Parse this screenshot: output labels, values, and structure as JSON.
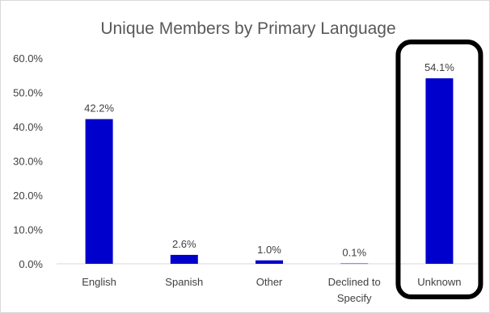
{
  "chart_data": {
    "type": "bar",
    "title": "Unique Members by Primary Language",
    "categories": [
      "English",
      "Spanish",
      "Other",
      "Declined to Specify",
      "Unknown"
    ],
    "category_lines": [
      [
        "English"
      ],
      [
        "Spanish"
      ],
      [
        "Other"
      ],
      [
        "Declined to",
        "Specify"
      ],
      [
        "Unknown"
      ]
    ],
    "values": [
      42.2,
      2.6,
      1.0,
      0.1,
      54.1
    ],
    "value_labels": [
      "42.2%",
      "2.6%",
      "1.0%",
      "0.1%",
      "54.1%"
    ],
    "yticks": [
      "0.0%",
      "10.0%",
      "20.0%",
      "30.0%",
      "40.0%",
      "50.0%",
      "60.0%"
    ],
    "ylim": [
      0,
      60
    ],
    "grid": false,
    "legend": "none",
    "bar_color": "#0000CC",
    "highlighted_category": "Unknown",
    "highlight_color": "#000000"
  }
}
